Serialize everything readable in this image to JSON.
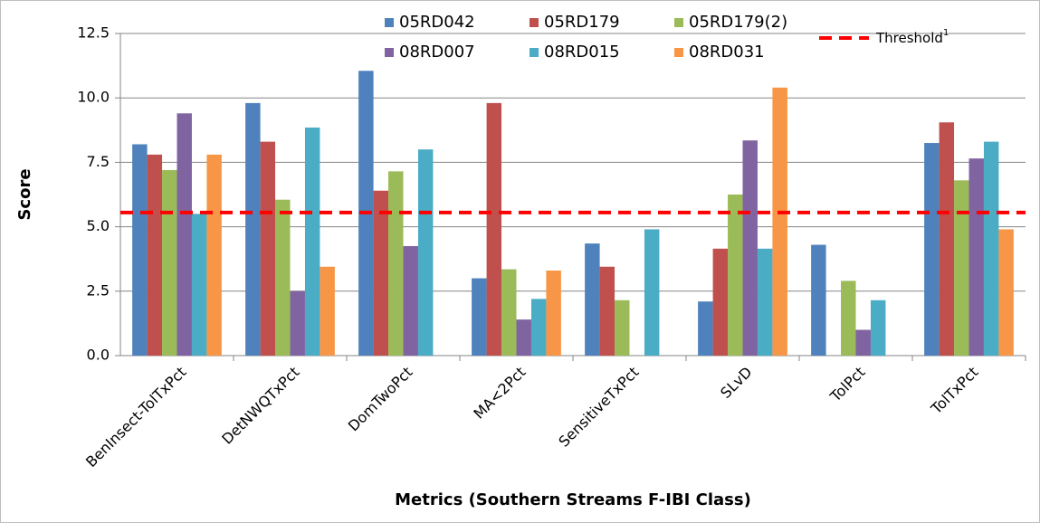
{
  "chart_data": {
    "type": "bar",
    "y_label": "Score",
    "x_label": "Metrics (Southern Streams F-IBI Class)",
    "categories": [
      "BenInsect-TolTxPct",
      "DetNWQTxPct",
      "DomTwoPct",
      "MA<2Pct",
      "SensitiveTxPct",
      "SLvD",
      "TolPct",
      "TolTxPct"
    ],
    "series": [
      {
        "name": "05RD042",
        "color": "#4f81bd",
        "values": [
          8.2,
          9.8,
          11.05,
          3.0,
          4.35,
          2.1,
          4.3,
          8.25
        ]
      },
      {
        "name": "05RD179",
        "color": "#c0504d",
        "values": [
          7.8,
          8.3,
          6.4,
          9.8,
          3.45,
          4.15,
          null,
          9.05
        ]
      },
      {
        "name": "05RD179(2)",
        "color": "#9bbb59",
        "values": [
          7.2,
          6.05,
          7.15,
          3.35,
          2.15,
          6.25,
          2.9,
          6.8
        ]
      },
      {
        "name": "08RD007",
        "color": "#8064a2",
        "values": [
          9.4,
          2.5,
          4.25,
          1.4,
          null,
          8.35,
          1.0,
          7.65
        ]
      },
      {
        "name": "08RD015",
        "color": "#4bacc6",
        "values": [
          5.5,
          8.85,
          8.0,
          2.2,
          4.9,
          4.15,
          2.15,
          8.3
        ]
      },
      {
        "name": "08RD031",
        "color": "#f79646",
        "values": [
          7.8,
          3.45,
          null,
          3.3,
          null,
          10.4,
          null,
          4.9
        ]
      }
    ],
    "threshold": {
      "name": "Threshold",
      "superscript": "1",
      "value": 5.55,
      "color": "#ff0000"
    },
    "ylim": [
      0,
      12.5
    ],
    "yticks": [
      {
        "value": 0,
        "label": "0.0"
      },
      2.5,
      {
        "value": 5,
        "label": "5.0"
      },
      7.5,
      {
        "value": 10,
        "label": "10.0"
      },
      12.5
    ],
    "grid": true
  }
}
